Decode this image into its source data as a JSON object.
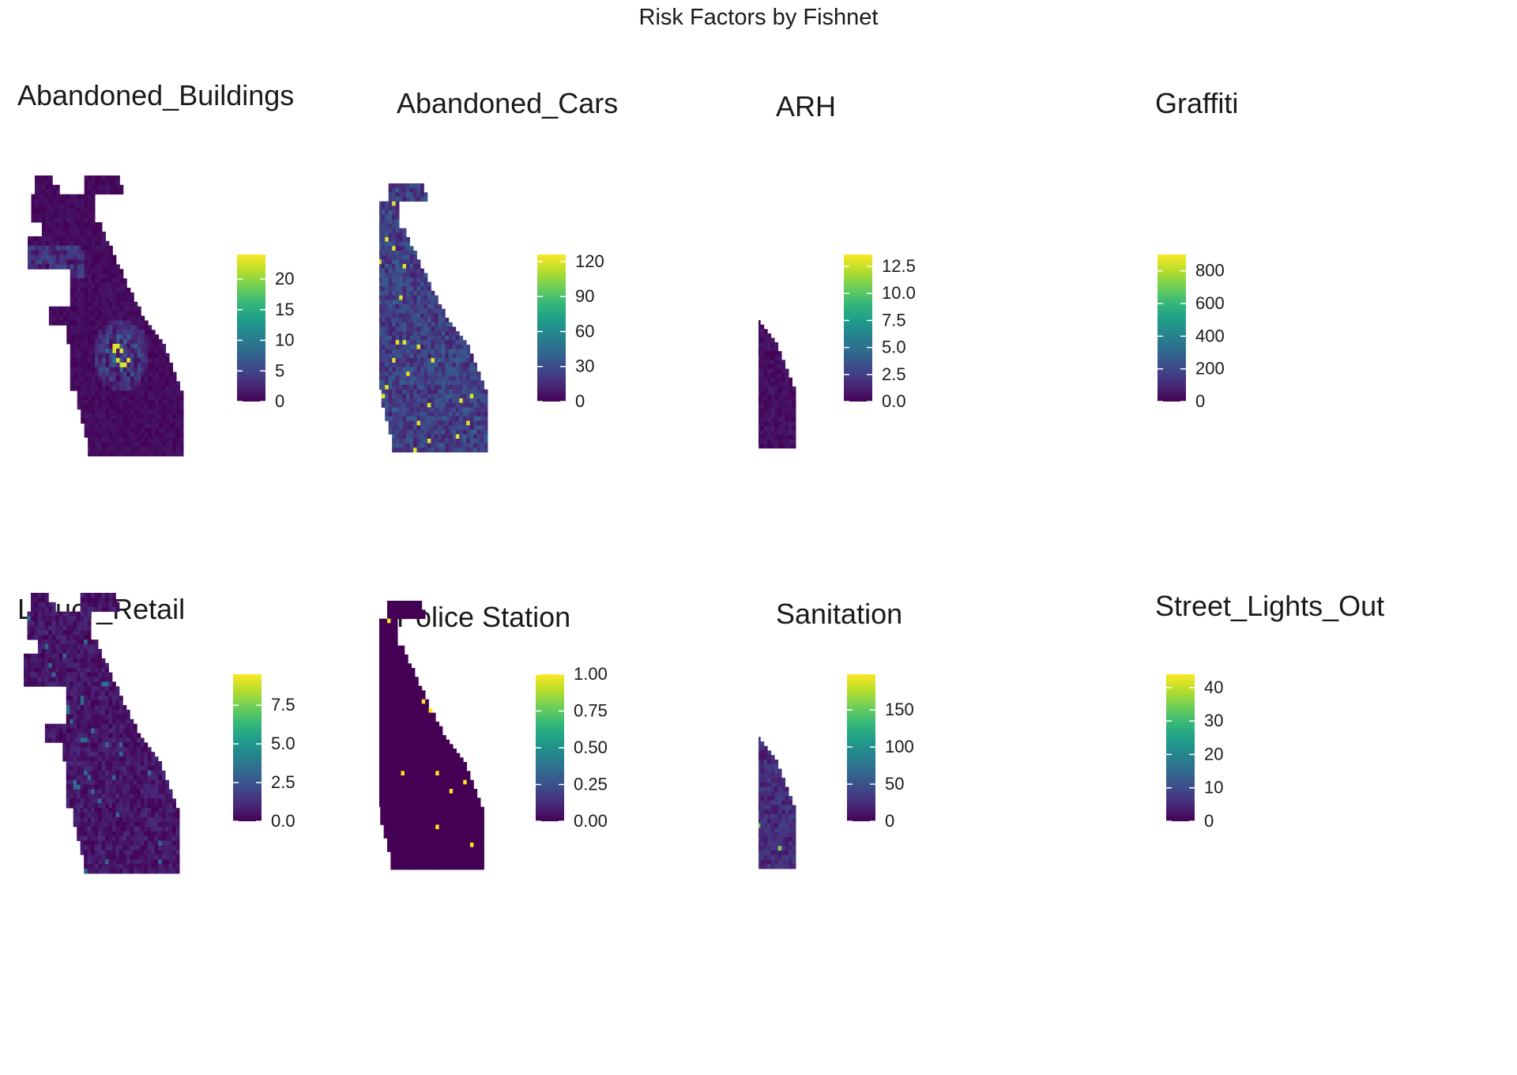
{
  "title": "Risk Factors by Fishnet",
  "chart_data": [
    {
      "type": "heatmap",
      "title": "Abandoned_Buildings",
      "colorscale": "viridis",
      "limits": [
        0,
        24
      ],
      "ticks": [
        0,
        5,
        10,
        15,
        20
      ],
      "tick_labels": [
        "0",
        "5",
        "10",
        "15",
        "20"
      ],
      "pattern": "southcluster",
      "seed": 11
    },
    {
      "type": "heatmap",
      "title": "Abandoned_Cars",
      "colorscale": "viridis",
      "limits": [
        0,
        126
      ],
      "ticks": [
        0,
        30,
        60,
        90,
        120
      ],
      "tick_labels": [
        "0",
        "30",
        "60",
        "90",
        "120"
      ],
      "pattern": "moderate",
      "seed": 23
    },
    {
      "type": "heatmap",
      "title": "ARH",
      "colorscale": "viridis",
      "limits": [
        0,
        13.6
      ],
      "ticks": [
        0,
        2.5,
        5,
        7.5,
        10,
        12.5
      ],
      "tick_labels": [
        "0.0",
        "2.5",
        "5.0",
        "7.5",
        "10.0",
        "12.5"
      ],
      "pattern": "sparse",
      "seed": 37
    },
    {
      "type": "heatmap",
      "title": "Graffiti",
      "colorscale": "viridis",
      "limits": [
        0,
        900
      ],
      "ticks": [
        0,
        200,
        400,
        600,
        800
      ],
      "tick_labels": [
        "0",
        "200",
        "400",
        "600",
        "800"
      ],
      "pattern": "lines",
      "seed": 41
    },
    {
      "type": "heatmap",
      "title": "Liquor_Retail",
      "colorscale": "viridis",
      "limits": [
        0,
        9.5
      ],
      "ticks": [
        0,
        2.5,
        5,
        7.5
      ],
      "tick_labels": [
        "0.0",
        "2.5",
        "5.0",
        "7.5"
      ],
      "pattern": "liquor",
      "seed": 53
    },
    {
      "type": "heatmap",
      "title": "Police Station",
      "colorscale": "viridis",
      "limits": [
        0,
        1
      ],
      "ticks": [
        0,
        0.25,
        0.5,
        0.75,
        1
      ],
      "tick_labels": [
        "0.00",
        "0.25",
        "0.50",
        "0.75",
        "1.00"
      ],
      "pattern": "police",
      "seed": 67
    },
    {
      "type": "heatmap",
      "title": "Sanitation",
      "colorscale": "viridis",
      "limits": [
        0,
        198
      ],
      "ticks": [
        0,
        50,
        100,
        150
      ],
      "tick_labels": [
        "0",
        "50",
        "100",
        "150"
      ],
      "pattern": "low",
      "seed": 71
    },
    {
      "type": "heatmap",
      "title": "Street_Lights_Out",
      "colorscale": "viridis",
      "limits": [
        0,
        44
      ],
      "ticks": [
        0,
        10,
        20,
        30,
        40
      ],
      "tick_labels": [
        "0",
        "10",
        "20",
        "30",
        "40"
      ],
      "pattern": "dense",
      "seed": 83
    }
  ]
}
